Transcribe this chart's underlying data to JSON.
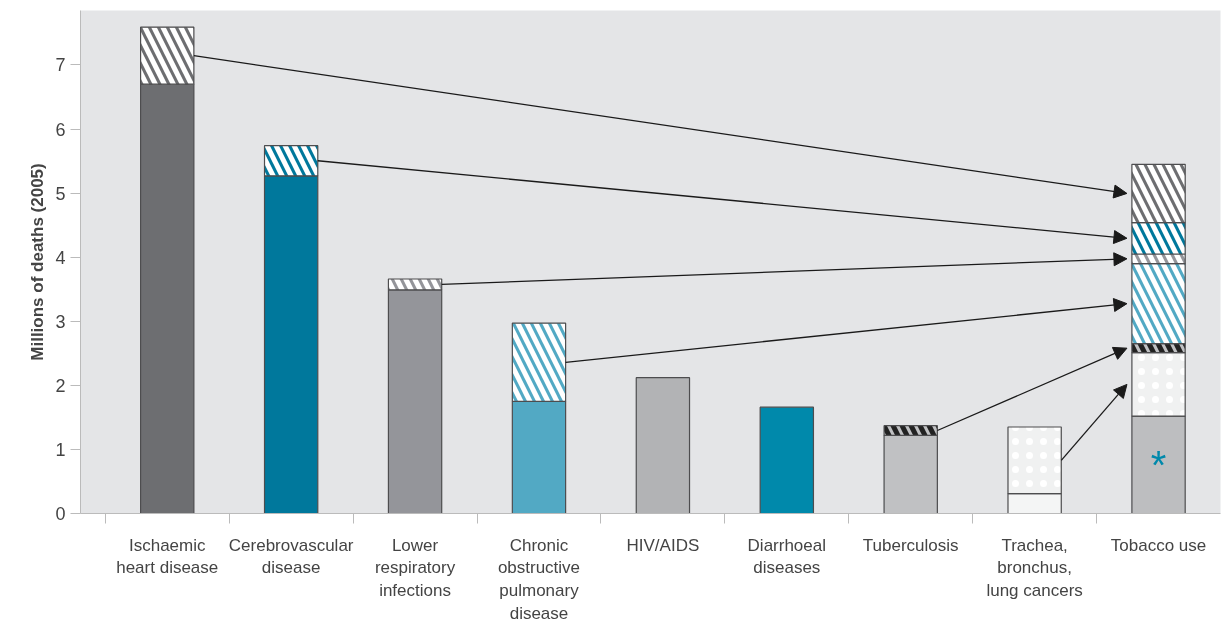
{
  "chart_data": {
    "type": "bar",
    "stacked": true,
    "ylabel": "Millions of deaths (2005)",
    "categories": [
      "Ischaemic heart disease",
      "Cerebrovascular disease",
      "Lower respiratory infections",
      "Chronic obstructive pulmonary disease",
      "HIV/AIDS",
      "Diarrhoeal diseases",
      "Tuberculosis",
      "Trachea, bronchus, lung cancers",
      "Tobacco use"
    ],
    "ylim": [
      0,
      7.85
    ],
    "yticks": [
      0,
      1,
      2,
      3,
      4,
      5,
      6,
      7
    ],
    "series": [
      {
        "colors": [
          "#6d6e71",
          "#00789c",
          "#94959a",
          "#52a9c4",
          "#b2b3b5",
          "#0089ab",
          "#c0c1c3",
          "#f4f5f5",
          "#bdbec0"
        ],
        "values": [
          6.7,
          5.27,
          3.49,
          1.75,
          2.12,
          1.66,
          1.22,
          0.31,
          1.52
        ]
      },
      {
        "color": "#f0f1f1",
        "values": [
          null,
          null,
          null,
          null,
          null,
          null,
          null,
          1.04,
          0.99
        ]
      },
      {
        "color": "#c0c1c3",
        "values": [
          null,
          null,
          null,
          null,
          null,
          null,
          0.15,
          null,
          0.14
        ]
      },
      {
        "color": "#52a9c4",
        "values": [
          null,
          null,
          null,
          1.22,
          null,
          null,
          null,
          null,
          1.25
        ]
      },
      {
        "color": "#94959a",
        "values": [
          null,
          null,
          0.17,
          null,
          null,
          null,
          null,
          null,
          0.15
        ]
      },
      {
        "color": "#00789c",
        "values": [
          null,
          0.47,
          null,
          null,
          null,
          null,
          null,
          null,
          0.49
        ]
      },
      {
        "color": "#6d6e71",
        "values": [
          0.89,
          null,
          null,
          null,
          null,
          null,
          null,
          null,
          0.91
        ]
      }
    ],
    "annotations": [
      "*"
    ]
  }
}
